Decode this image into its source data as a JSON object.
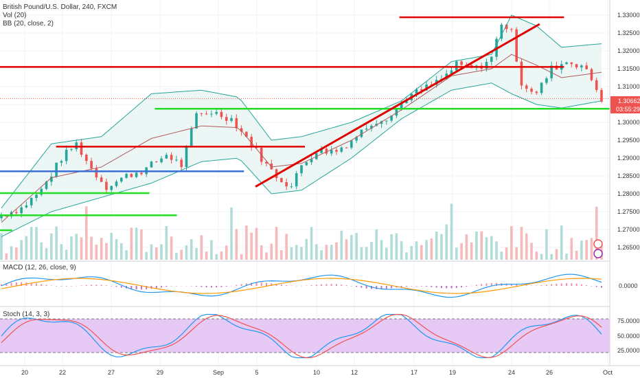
{
  "header": {
    "symbol_title": "British Pound/U.S. Dollar, 240, FXCM",
    "study_vol": "Vol (20)",
    "study_bb": "BB (20, close, 2)"
  },
  "macd": {
    "title": "MACD (12, 26, close, 9)",
    "zero_label": "0.0000"
  },
  "stoch": {
    "title": "Stoch (14, 3, 3)",
    "levels": [
      "75.0000",
      "50.0000",
      "25.0000"
    ]
  },
  "price_axis": {
    "ticks": [
      "1.33000",
      "1.32500",
      "1.32000",
      "1.31500",
      "1.31000",
      "1.30500",
      "1.30000",
      "1.29500",
      "1.29000",
      "1.28500",
      "1.28000",
      "1.27500",
      "1.27000",
      "1.26500"
    ],
    "last_price": "1.30662",
    "countdown": "03:55:29"
  },
  "time_axis": {
    "labels": [
      "20",
      "22",
      "27",
      "29",
      "Sep",
      "5",
      "10",
      "12",
      "17",
      "19",
      "24",
      "26",
      "Oct"
    ]
  },
  "colors": {
    "up": "#26a69a",
    "down": "#ef5350",
    "bb_fill": "#e6f4f3",
    "bb_band": "#26a69a",
    "bb_mid": "#b05b5b",
    "red_line": "#e00000",
    "green_line": "#22dd22",
    "blue_line": "#3a6fd8",
    "macd_line": "#2196f3",
    "signal_line": "#ff9800",
    "stoch_fill": "#e6c9f5"
  },
  "chart_data": {
    "type": "candlestick",
    "title": "British Pound/U.S. Dollar, 240, FXCM",
    "x_dates": [
      "Aug 20",
      "Aug 22",
      "Aug 27",
      "Aug 29",
      "Sep 3",
      "Sep 5",
      "Sep 10",
      "Sep 12",
      "Sep 17",
      "Sep 19",
      "Sep 24",
      "Sep 26",
      "Oct 1"
    ],
    "x_labels": [
      "20",
      "22",
      "27",
      "29",
      "Sep",
      "5",
      "10",
      "12",
      "17",
      "19",
      "24",
      "26",
      "Oct"
    ],
    "ylim": [
      1.262,
      1.333
    ],
    "close_path": [
      [
        0,
        1.274
      ],
      [
        8,
        1.276
      ],
      [
        16,
        1.281
      ],
      [
        24,
        1.29
      ],
      [
        30,
        1.294
      ],
      [
        36,
        1.287
      ],
      [
        42,
        1.282
      ],
      [
        50,
        1.285
      ],
      [
        58,
        1.287
      ],
      [
        66,
        1.291
      ],
      [
        72,
        1.288
      ],
      [
        78,
        1.302
      ],
      [
        84,
        1.303
      ],
      [
        92,
        1.301
      ],
      [
        100,
        1.294
      ],
      [
        106,
        1.288
      ],
      [
        110,
        1.285
      ],
      [
        116,
        1.282
      ],
      [
        120,
        1.288
      ],
      [
        126,
        1.292
      ],
      [
        134,
        1.292
      ],
      [
        140,
        1.295
      ],
      [
        148,
        1.3
      ],
      [
        156,
        1.302
      ],
      [
        162,
        1.307
      ],
      [
        168,
        1.309
      ],
      [
        176,
        1.312
      ],
      [
        182,
        1.316
      ],
      [
        190,
        1.315
      ],
      [
        196,
        1.318
      ],
      [
        200,
        1.328
      ],
      [
        204,
        1.325
      ],
      [
        208,
        1.311
      ],
      [
        214,
        1.308
      ],
      [
        220,
        1.315
      ],
      [
        226,
        1.317
      ],
      [
        232,
        1.316
      ],
      [
        236,
        1.312
      ],
      [
        240,
        1.3066
      ]
    ],
    "bb_upper": [
      [
        0,
        1.276
      ],
      [
        20,
        1.294
      ],
      [
        40,
        1.296
      ],
      [
        60,
        1.308
      ],
      [
        80,
        1.309
      ],
      [
        95,
        1.307
      ],
      [
        108,
        1.295
      ],
      [
        120,
        1.296
      ],
      [
        140,
        1.3
      ],
      [
        160,
        1.306
      ],
      [
        180,
        1.317
      ],
      [
        196,
        1.319
      ],
      [
        204,
        1.33
      ],
      [
        214,
        1.327
      ],
      [
        224,
        1.321
      ],
      [
        240,
        1.322
      ]
    ],
    "bb_lower": [
      [
        0,
        1.268
      ],
      [
        20,
        1.275
      ],
      [
        40,
        1.279
      ],
      [
        60,
        1.283
      ],
      [
        80,
        1.289
      ],
      [
        95,
        1.29
      ],
      [
        108,
        1.28
      ],
      [
        120,
        1.281
      ],
      [
        140,
        1.29
      ],
      [
        160,
        1.301
      ],
      [
        180,
        1.309
      ],
      [
        196,
        1.311
      ],
      [
        204,
        1.308
      ],
      [
        214,
        1.305
      ],
      [
        224,
        1.304
      ],
      [
        240,
        1.306
      ]
    ],
    "levels": [
      {
        "color": "red",
        "price": 1.3294,
        "x_range": [
          0.655,
          0.925
        ]
      },
      {
        "color": "red",
        "price": 1.3155,
        "x_range": [
          0.0,
          0.925
        ]
      },
      {
        "color": "red",
        "price": 1.2932,
        "x_range": [
          0.092,
          0.5
        ]
      },
      {
        "color": "green",
        "price": 1.3038,
        "x_range": [
          0.254,
          1.0
        ]
      },
      {
        "color": "green",
        "price": 1.2802,
        "x_range": [
          0.0,
          0.245
        ]
      },
      {
        "color": "green",
        "price": 1.274,
        "x_range": [
          0.0,
          0.29
        ]
      },
      {
        "color": "green",
        "price": 1.2698,
        "x_range": [
          0.0,
          0.02
        ]
      },
      {
        "color": "blue",
        "price": 1.2863,
        "x_range": [
          0.0,
          0.4
        ]
      }
    ],
    "trendline": {
      "from": [
        0.419,
        1.282
      ],
      "to": [
        0.885,
        1.3275
      ]
    },
    "last_price": 1.30662,
    "macd_zero": 0.0,
    "stoch_levels": [
      75,
      50,
      25
    ]
  }
}
